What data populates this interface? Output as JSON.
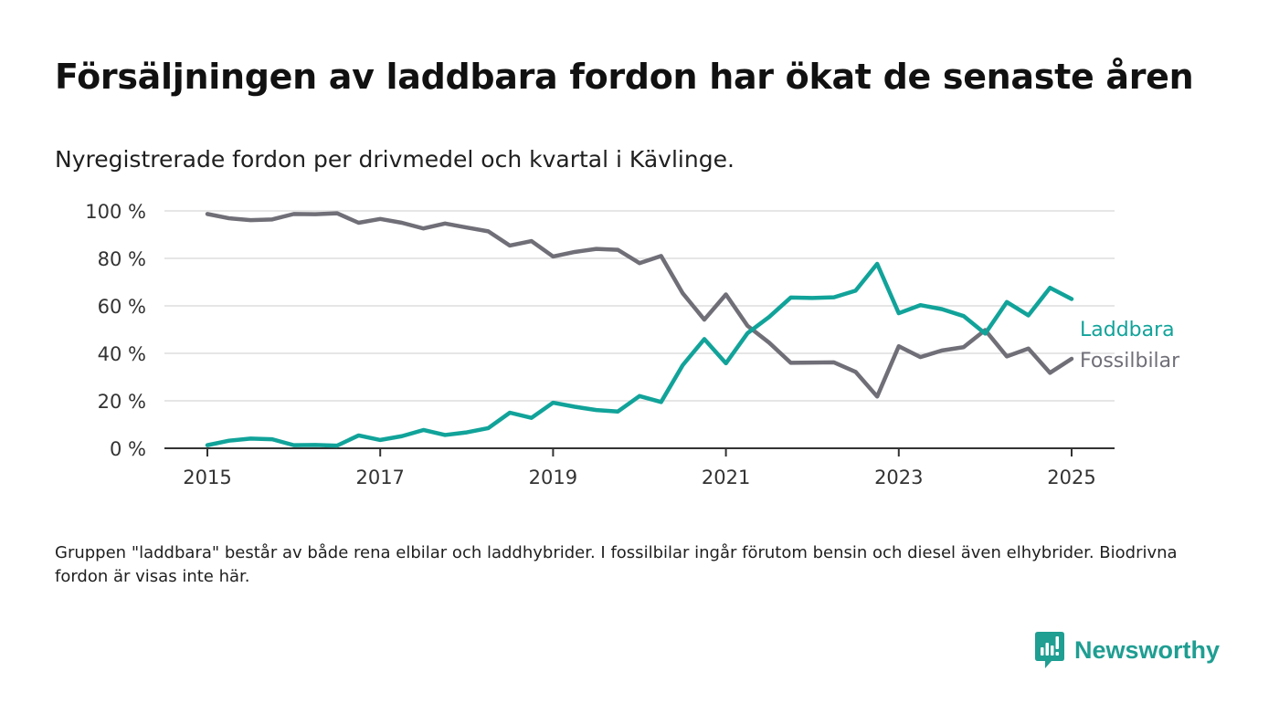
{
  "title": "Försäljningen av laddbara fordon har ökat de senaste åren",
  "subtitle": "Nyregistrerade fordon per drivmedel och kvartal i Kävlinge.",
  "note": "Gruppen \"laddbara\" består av både rena elbilar och laddhybrider. I fossilbilar ingår förutom bensin och diesel även elhybrider. Biodrivna fordon är visas inte här.",
  "brand": {
    "name": "Newsworthy",
    "icon": "newsworthy-logo-icon",
    "color": "#1f9e92"
  },
  "chart_data": {
    "type": "line",
    "title": "Försäljningen av laddbara fordon har ökat de senaste åren",
    "subtitle": "Nyregistrerade fordon per drivmedel och kvartal i Kävlinge.",
    "x_ticks": [
      "2015",
      "2017",
      "2019",
      "2021",
      "2023",
      "2025"
    ],
    "y_ticks": [
      "0 %",
      "20 %",
      "40 %",
      "60 %",
      "80 %",
      "100 %"
    ],
    "ylim": [
      0,
      100
    ],
    "xlim": [
      "2014-10",
      "2025-07"
    ],
    "y_unit": "%",
    "grid": "horizontal",
    "legend": "direct labels at line ends",
    "x": [
      "2015 Q1",
      "2015 Q2",
      "2015 Q3",
      "2015 Q4",
      "2016 Q1",
      "2016 Q2",
      "2016 Q3",
      "2016 Q4",
      "2017 Q1",
      "2017 Q2",
      "2017 Q3",
      "2017 Q4",
      "2018 Q1",
      "2018 Q2",
      "2018 Q3",
      "2018 Q4",
      "2019 Q1",
      "2019 Q2",
      "2019 Q3",
      "2019 Q4",
      "2020 Q1",
      "2020 Q2",
      "2020 Q3",
      "2020 Q4",
      "2021 Q1",
      "2021 Q2",
      "2021 Q3",
      "2021 Q4",
      "2022 Q1",
      "2022 Q2",
      "2022 Q3",
      "2022 Q4",
      "2023 Q1",
      "2023 Q2",
      "2023 Q3",
      "2023 Q4",
      "2024 Q1",
      "2024 Q2",
      "2024 Q3",
      "2024 Q4",
      "2025 Q1"
    ],
    "series": [
      {
        "name": "Laddbara",
        "color": "#11a39a",
        "values": [
          1.3,
          3.2,
          4.1,
          3.8,
          1.3,
          1.4,
          1.1,
          5.4,
          3.5,
          5.1,
          7.7,
          5.6,
          6.7,
          8.5,
          15.0,
          12.8,
          19.2,
          17.5,
          16.1,
          15.5,
          22.0,
          19.5,
          35.0,
          46.0,
          35.8,
          48.5,
          55.3,
          63.5,
          63.3,
          63.6,
          66.4,
          77.7,
          56.9,
          60.3,
          58.6,
          55.7,
          48.3,
          61.6,
          56.0,
          67.6,
          62.9
        ]
      },
      {
        "name": "Fossilbilar",
        "color": "#706f78",
        "values": [
          98.7,
          96.9,
          96.1,
          96.4,
          98.7,
          98.6,
          99.0,
          95.0,
          96.6,
          95.0,
          92.6,
          94.7,
          93.0,
          91.4,
          85.4,
          87.3,
          80.8,
          82.7,
          84.0,
          83.6,
          78.0,
          81.0,
          65.3,
          54.2,
          64.8,
          51.6,
          44.5,
          36.0,
          36.1,
          36.2,
          32.2,
          21.8,
          43.0,
          38.4,
          41.2,
          42.6,
          49.8,
          38.7,
          42.0,
          31.8,
          37.7
        ]
      }
    ]
  }
}
